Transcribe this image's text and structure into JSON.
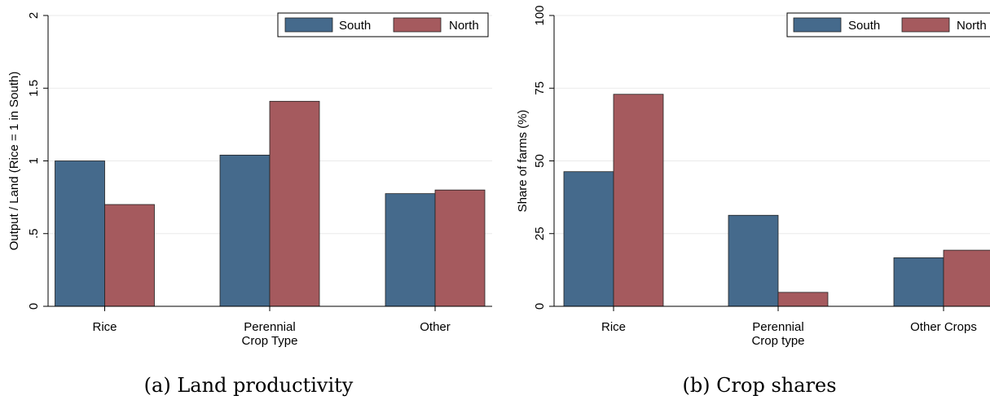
{
  "colors": {
    "south": "#456a8c",
    "north": "#a55a5e",
    "grid": "#eaeaea"
  },
  "chart_data": [
    {
      "type": "bar",
      "caption": "(a) Land productivity",
      "categories": [
        [
          "Rice"
        ],
        [
          "Perennial",
          "Crop Type"
        ],
        [
          "Other"
        ]
      ],
      "series": [
        {
          "name": "South",
          "values": [
            1.0,
            1.04,
            0.775
          ]
        },
        {
          "name": "North",
          "values": [
            0.7,
            1.41,
            0.8
          ]
        }
      ],
      "ylabel": "Output / Land (Rice = 1 in South)",
      "xlabel": "",
      "ylim": [
        0,
        2
      ],
      "yticks": [
        0,
        0.5,
        1,
        1.5,
        2
      ],
      "ytick_labels": [
        "0",
        ".5",
        "1",
        "1.5",
        "2"
      ],
      "grid": true,
      "legend": "top-right"
    },
    {
      "type": "bar",
      "caption": "(b) Crop shares",
      "categories": [
        [
          "Rice"
        ],
        [
          "Perennial",
          "Crop type"
        ],
        [
          "Other Crops"
        ]
      ],
      "series": [
        {
          "name": "South",
          "values": [
            46.3,
            31.3,
            16.7
          ]
        },
        {
          "name": "North",
          "values": [
            72.9,
            4.8,
            19.3
          ]
        }
      ],
      "ylabel": "Share of farms (%)",
      "xlabel": "",
      "ylim": [
        0,
        100
      ],
      "yticks": [
        0,
        25,
        50,
        75,
        100
      ],
      "ytick_labels": [
        "0",
        "25",
        "50",
        "75",
        "100"
      ],
      "grid": true,
      "legend": "top-right"
    }
  ]
}
